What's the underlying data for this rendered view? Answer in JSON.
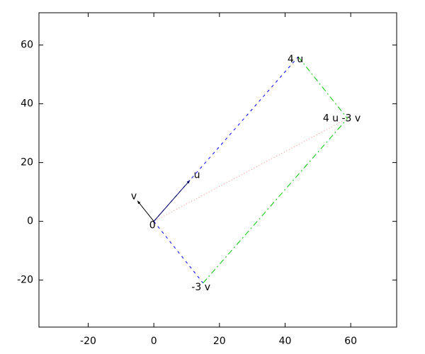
{
  "chart_data": {
    "type": "vector",
    "xlim": [
      -35,
      74
    ],
    "ylim": [
      -36,
      71
    ],
    "xticks": [
      -20,
      0,
      20,
      40,
      60
    ],
    "yticks": [
      -20,
      0,
      20,
      40,
      60
    ],
    "points": [
      {
        "label": "0",
        "x": 0,
        "y": 0
      },
      {
        "label": "u",
        "x": 11,
        "y": 14
      },
      {
        "label": "v",
        "x": -5,
        "y": 7
      },
      {
        "label": "4 u",
        "x": 44,
        "y": 56
      },
      {
        "label": "-3 v",
        "x": 15,
        "y": -21
      },
      {
        "label": "4 u -3 v",
        "x": 59,
        "y": 35
      }
    ],
    "segments": [
      {
        "from": "0",
        "to": "4 u",
        "color": "#0000ff",
        "style": "dashed"
      },
      {
        "from": "0",
        "to": "-3 v",
        "color": "#0000ff",
        "style": "dashed"
      },
      {
        "from": "4 u",
        "to": "4 u -3 v",
        "color": "#00cc00",
        "style": "dashdot"
      },
      {
        "from": "-3 v",
        "to": "4 u -3 v",
        "color": "#00cc00",
        "style": "dashdot"
      },
      {
        "from": "0",
        "to": "4 u -3 v",
        "color": "#ff8080",
        "style": "dotted"
      },
      {
        "from": "0",
        "to": "u",
        "color": "#000060",
        "style": "arrow"
      },
      {
        "from": "0",
        "to": "v",
        "color": "#000000",
        "style": "arrow"
      }
    ]
  }
}
